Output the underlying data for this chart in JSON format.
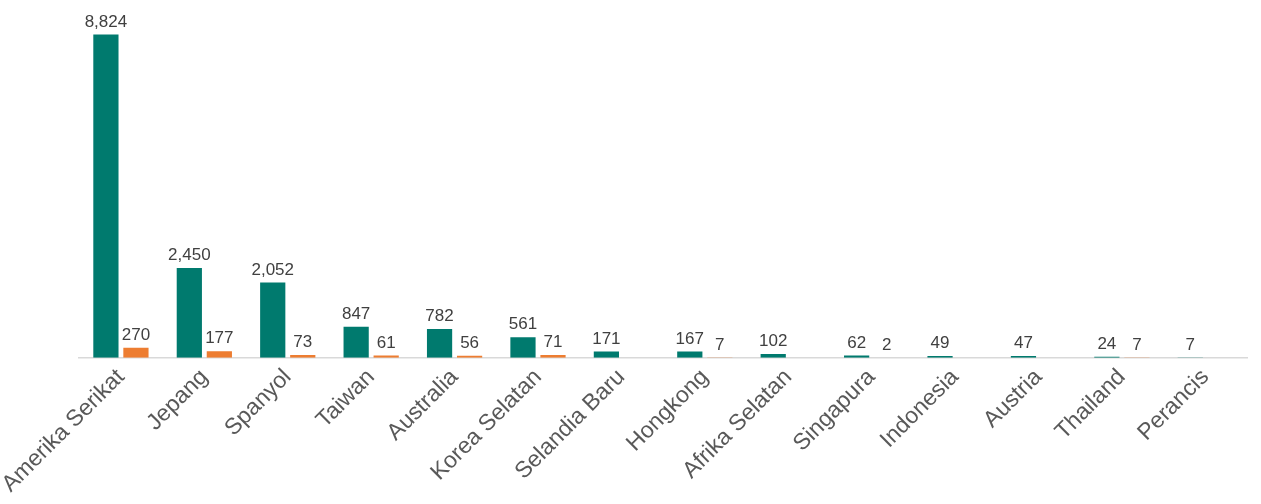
{
  "chart_data": {
    "type": "bar",
    "categories": [
      "Amerika Serikat",
      "Jepang",
      "Spanyol",
      "Taiwan",
      "Australia",
      "Korea Selatan",
      "Selandia Baru",
      "Hongkong",
      "Afrika Selatan",
      "Singapura",
      "Indonesia",
      "Austria",
      "Thailand",
      "Perancis"
    ],
    "series": [
      {
        "color": "#007a6e",
        "values": [
          8824,
          2450,
          2052,
          847,
          782,
          561,
          171,
          167,
          102,
          62,
          49,
          47,
          24,
          7
        ],
        "value_labels": [
          "8,824",
          "2,450",
          "2,052",
          "847",
          "782",
          "561",
          "171",
          "167",
          "102",
          "62",
          "49",
          "47",
          "24",
          "7"
        ]
      },
      {
        "color": "#ed7d31",
        "values": [
          270,
          177,
          73,
          61,
          56,
          71,
          null,
          7,
          null,
          2,
          null,
          null,
          7,
          null
        ],
        "value_labels": [
          "270",
          "177",
          "73",
          "61",
          "56",
          "71",
          null,
          "7",
          null,
          "2",
          null,
          null,
          "7",
          null
        ]
      }
    ],
    "grid": false,
    "legend": false
  }
}
